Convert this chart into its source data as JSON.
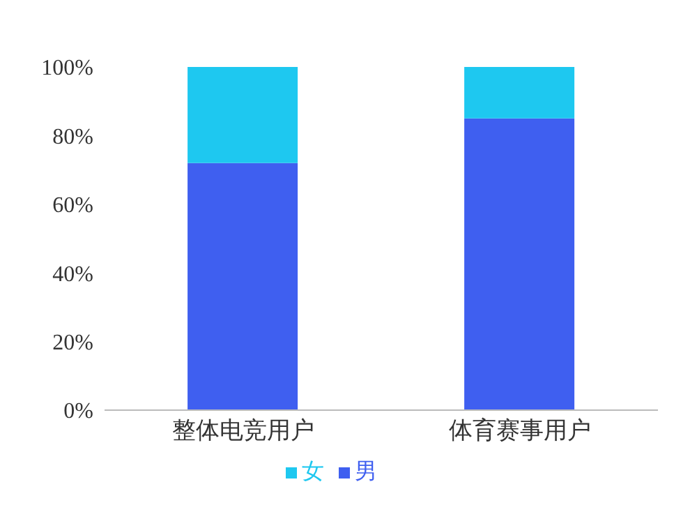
{
  "chart_data": {
    "type": "bar",
    "stacked": true,
    "categories": [
      "整体电竞用户",
      "体育赛事用户"
    ],
    "series": [
      {
        "name": "男",
        "color": "#3f5ff0",
        "values": [
          72,
          85
        ]
      },
      {
        "name": "女",
        "color": "#1ec8f0",
        "values": [
          28,
          15
        ]
      }
    ],
    "ylim": [
      0,
      100
    ],
    "yticks": [
      {
        "value": 0,
        "label": "0%"
      },
      {
        "value": 20,
        "label": "20%"
      },
      {
        "value": 40,
        "label": "40%"
      },
      {
        "value": 60,
        "label": "60%"
      },
      {
        "value": 80,
        "label": "80%"
      },
      {
        "value": 100,
        "label": "100%"
      }
    ],
    "grid": false,
    "legend": "bottom"
  }
}
